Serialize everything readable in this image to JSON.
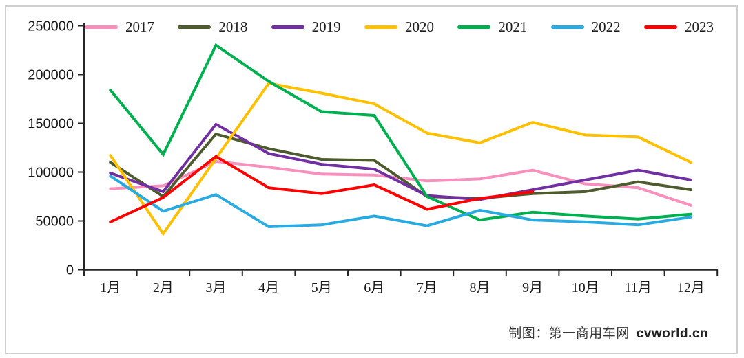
{
  "page": {
    "background": "#ffffff",
    "frame_border_color": "#cfcfcf",
    "axis_color": "#262626"
  },
  "caption": {
    "text": "制图：第一商用车网",
    "site": "cvworld.cn"
  },
  "chart_data": {
    "type": "line",
    "title": "",
    "xlabel": "",
    "ylabel": "",
    "grid": false,
    "legend_position": "top",
    "y_axis_range": [
      0,
      250000
    ],
    "y_ticks": [
      0,
      50000,
      100000,
      150000,
      200000,
      250000
    ],
    "x_categories": [
      "1月",
      "2月",
      "3月",
      "4月",
      "5月",
      "6月",
      "7月",
      "8月",
      "9月",
      "10月",
      "11月",
      "12月"
    ],
    "series": [
      {
        "name": "2017",
        "color": "#F890BE",
        "values": [
          83000,
          86000,
          111000,
          105000,
          98000,
          97000,
          91000,
          93000,
          102000,
          88000,
          84000,
          66000
        ]
      },
      {
        "name": "2018",
        "color": "#4E5B2F",
        "values": [
          110000,
          75000,
          139000,
          124000,
          113000,
          112000,
          75000,
          73000,
          78000,
          80000,
          90000,
          82000
        ]
      },
      {
        "name": "2019",
        "color": "#7030A0",
        "values": [
          99000,
          80000,
          149000,
          119000,
          108000,
          103000,
          76000,
          72000,
          82000,
          92000,
          102000,
          92000
        ]
      },
      {
        "name": "2020",
        "color": "#FFC000",
        "values": [
          117000,
          37000,
          114000,
          191000,
          181000,
          170000,
          140000,
          130000,
          151000,
          138000,
          136000,
          110000
        ]
      },
      {
        "name": "2021",
        "color": "#00B050",
        "values": [
          184000,
          118000,
          230000,
          193000,
          162000,
          158000,
          75000,
          51000,
          59000,
          55000,
          52000,
          57000
        ]
      },
      {
        "name": "2022",
        "color": "#29ABE2",
        "values": [
          96000,
          60000,
          77000,
          44000,
          46000,
          55000,
          45000,
          61000,
          51000,
          49000,
          46000,
          54000
        ]
      },
      {
        "name": "2023",
        "color": "#FF0000",
        "values": [
          49000,
          74000,
          116000,
          84000,
          78000,
          87000,
          62000,
          73000,
          80000
        ]
      }
    ]
  }
}
